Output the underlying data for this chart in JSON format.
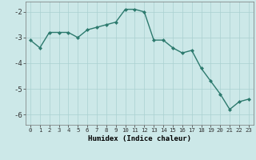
{
  "x": [
    0,
    1,
    2,
    3,
    4,
    5,
    6,
    7,
    8,
    9,
    10,
    11,
    12,
    13,
    14,
    15,
    16,
    17,
    18,
    19,
    20,
    21,
    22,
    23
  ],
  "y": [
    -3.1,
    -3.4,
    -2.8,
    -2.8,
    -2.8,
    -3.0,
    -2.7,
    -2.6,
    -2.5,
    -2.4,
    -1.9,
    -1.9,
    -2.0,
    -3.1,
    -3.1,
    -3.4,
    -3.6,
    -3.5,
    -4.2,
    -4.7,
    -5.2,
    -5.8,
    -5.5,
    -5.4
  ],
  "line_color": "#2d7a6e",
  "marker": "D",
  "markersize": 2.0,
  "linewidth": 1.0,
  "bg_color": "#cce8e8",
  "grid_color": "#aad0d0",
  "xlabel": "Humidex (Indice chaleur)",
  "ylim": [
    -6.4,
    -1.6
  ],
  "yticks": [
    -6,
    -5,
    -4,
    -3,
    -2
  ],
  "xtick_labels": [
    "0",
    "1",
    "2",
    "3",
    "4",
    "5",
    "6",
    "7",
    "8",
    "9",
    "10",
    "11",
    "12",
    "13",
    "14",
    "15",
    "16",
    "17",
    "18",
    "19",
    "20",
    "21",
    "22",
    "23"
  ],
  "xlabel_fontsize": 6.5,
  "ytick_fontsize": 6.5,
  "xtick_fontsize": 5.2
}
